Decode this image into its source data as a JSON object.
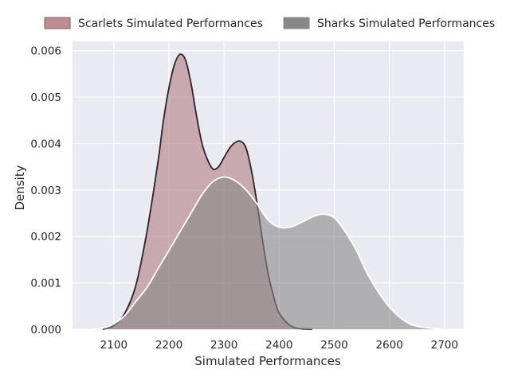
{
  "chart_data": {
    "type": "area",
    "title": "",
    "xlabel": "Simulated Performances",
    "ylabel": "Density",
    "xlim": [
      2025,
      2735
    ],
    "ylim": [
      0,
      0.0062
    ],
    "xticks": [
      2100,
      2200,
      2300,
      2400,
      2500,
      2600,
      2700
    ],
    "xtick_labels": [
      "2100",
      "2200",
      "2300",
      "2400",
      "2500",
      "2600",
      "2700"
    ],
    "yticks": [
      0,
      0.001,
      0.002,
      0.003,
      0.004,
      0.005,
      0.006
    ],
    "ytick_labels": [
      "0.000",
      "0.001",
      "0.002",
      "0.003",
      "0.004",
      "0.005",
      "0.006"
    ],
    "grid": true,
    "legend_position": "top",
    "series": [
      {
        "name": "Scarlets Simulated Performances",
        "fill_color": "#a97278",
        "fill_opacity": 0.55,
        "line_color": "#2e2228",
        "points": [
          [
            2080,
            0.0
          ],
          [
            2100,
            8e-05
          ],
          [
            2120,
            0.00035
          ],
          [
            2140,
            0.00095
          ],
          [
            2160,
            0.0021
          ],
          [
            2180,
            0.0036
          ],
          [
            2190,
            0.0045
          ],
          [
            2200,
            0.0052
          ],
          [
            2210,
            0.0057
          ],
          [
            2220,
            0.00592
          ],
          [
            2230,
            0.0058
          ],
          [
            2240,
            0.0053
          ],
          [
            2250,
            0.0046
          ],
          [
            2260,
            0.004
          ],
          [
            2270,
            0.00365
          ],
          [
            2280,
            0.00345
          ],
          [
            2290,
            0.0035
          ],
          [
            2300,
            0.0037
          ],
          [
            2310,
            0.0039
          ],
          [
            2320,
            0.00402
          ],
          [
            2330,
            0.00405
          ],
          [
            2340,
            0.0039
          ],
          [
            2350,
            0.0034
          ],
          [
            2360,
            0.0027
          ],
          [
            2370,
            0.0019
          ],
          [
            2380,
            0.0012
          ],
          [
            2390,
            0.0007
          ],
          [
            2400,
            0.00035
          ],
          [
            2420,
            8e-05
          ],
          [
            2440,
            1e-05
          ],
          [
            2460,
            0.0
          ]
        ]
      },
      {
        "name": "Sharks Simulated Performances",
        "fill_color": "#888888",
        "fill_opacity": 0.6,
        "line_color": "#ffffff",
        "points": [
          [
            2060,
            0.0
          ],
          [
            2080,
            3e-05
          ],
          [
            2100,
            0.00012
          ],
          [
            2120,
            0.0003
          ],
          [
            2140,
            0.0006
          ],
          [
            2160,
            0.0009
          ],
          [
            2180,
            0.0013
          ],
          [
            2200,
            0.0017
          ],
          [
            2220,
            0.0021
          ],
          [
            2240,
            0.0025
          ],
          [
            2260,
            0.0029
          ],
          [
            2280,
            0.00318
          ],
          [
            2300,
            0.00328
          ],
          [
            2320,
            0.0032
          ],
          [
            2340,
            0.003
          ],
          [
            2360,
            0.0027
          ],
          [
            2380,
            0.00235
          ],
          [
            2400,
            0.0022
          ],
          [
            2420,
            0.0022
          ],
          [
            2440,
            0.0023
          ],
          [
            2460,
            0.00242
          ],
          [
            2480,
            0.00248
          ],
          [
            2500,
            0.0024
          ],
          [
            2520,
            0.0021
          ],
          [
            2540,
            0.0017
          ],
          [
            2560,
            0.0012
          ],
          [
            2580,
            0.0008
          ],
          [
            2600,
            0.00048
          ],
          [
            2620,
            0.00025
          ],
          [
            2640,
            0.0001
          ],
          [
            2660,
            5e-05
          ],
          [
            2680,
            2e-05
          ],
          [
            2700,
            0.0
          ]
        ]
      }
    ]
  },
  "colors": {
    "plot_background": "#eaeaf2",
    "grid": "#ffffff",
    "text": "#262626"
  }
}
